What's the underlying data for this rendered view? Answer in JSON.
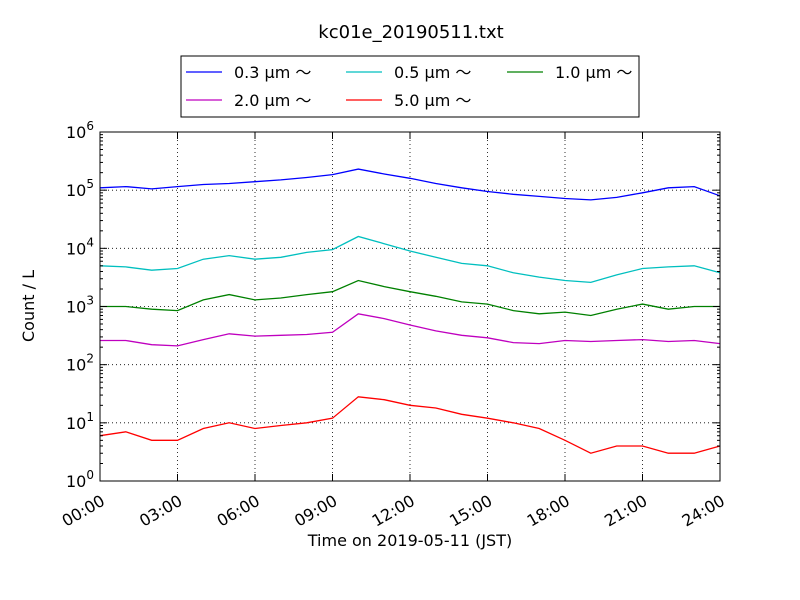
{
  "chart_data": {
    "type": "line",
    "title": "kc01e_20190511.txt",
    "xlabel": "Time on 2019-05-11 (JST)",
    "ylabel": "Count / L",
    "yscale": "log",
    "ylim": [
      1,
      1000000
    ],
    "xlim": [
      "00:00",
      "24:00"
    ],
    "x_tick_labels": [
      "00:00",
      "03:00",
      "06:00",
      "09:00",
      "12:00",
      "15:00",
      "18:00",
      "21:00",
      "24:00"
    ],
    "y_tick_labels": [
      {
        "base": "10",
        "exp": "0"
      },
      {
        "base": "10",
        "exp": "1"
      },
      {
        "base": "10",
        "exp": "2"
      },
      {
        "base": "10",
        "exp": "3"
      },
      {
        "base": "10",
        "exp": "4"
      },
      {
        "base": "10",
        "exp": "5"
      },
      {
        "base": "10",
        "exp": "6"
      }
    ],
    "grid": true,
    "legend_position": "top",
    "x_hours": [
      0,
      1,
      2,
      3,
      4,
      5,
      6,
      7,
      8,
      9,
      10,
      11,
      12,
      13,
      14,
      15,
      16,
      17,
      18,
      19,
      20,
      21,
      22,
      23,
      24
    ],
    "series": [
      {
        "name": "0.3 µm ～",
        "color": "#0000ff",
        "values": [
          110000,
          115000,
          105000,
          115000,
          125000,
          130000,
          140000,
          150000,
          165000,
          185000,
          230000,
          190000,
          160000,
          130000,
          110000,
          95000,
          85000,
          78000,
          72000,
          68000,
          75000,
          90000,
          110000,
          115000,
          80000
        ]
      },
      {
        "name": "0.5 µm ～",
        "color": "#00bfbf",
        "values": [
          5000,
          4800,
          4200,
          4500,
          6500,
          7500,
          6500,
          7000,
          8500,
          9500,
          16000,
          12000,
          9000,
          7000,
          5500,
          5000,
          3800,
          3200,
          2800,
          2600,
          3500,
          4500,
          4800,
          5000,
          3800
        ]
      },
      {
        "name": "1.0 µm ～",
        "color": "#008000",
        "values": [
          1000,
          1000,
          900,
          850,
          1300,
          1600,
          1300,
          1400,
          1600,
          1800,
          2800,
          2200,
          1800,
          1500,
          1200,
          1100,
          850,
          750,
          800,
          700,
          900,
          1100,
          900,
          1000,
          1000
        ]
      },
      {
        "name": "2.0 µm ～",
        "color": "#bf00bf",
        "values": [
          260,
          260,
          220,
          210,
          270,
          340,
          310,
          320,
          330,
          360,
          750,
          620,
          480,
          380,
          320,
          290,
          240,
          230,
          260,
          250,
          260,
          270,
          250,
          260,
          230
        ]
      },
      {
        "name": "5.0 µm ～",
        "color": "#ff0000",
        "values": [
          6,
          7,
          5,
          5,
          8,
          10,
          8,
          9,
          10,
          12,
          28,
          25,
          20,
          18,
          14,
          12,
          10,
          8,
          5,
          3,
          4,
          4,
          3,
          3,
          4
        ]
      }
    ]
  }
}
